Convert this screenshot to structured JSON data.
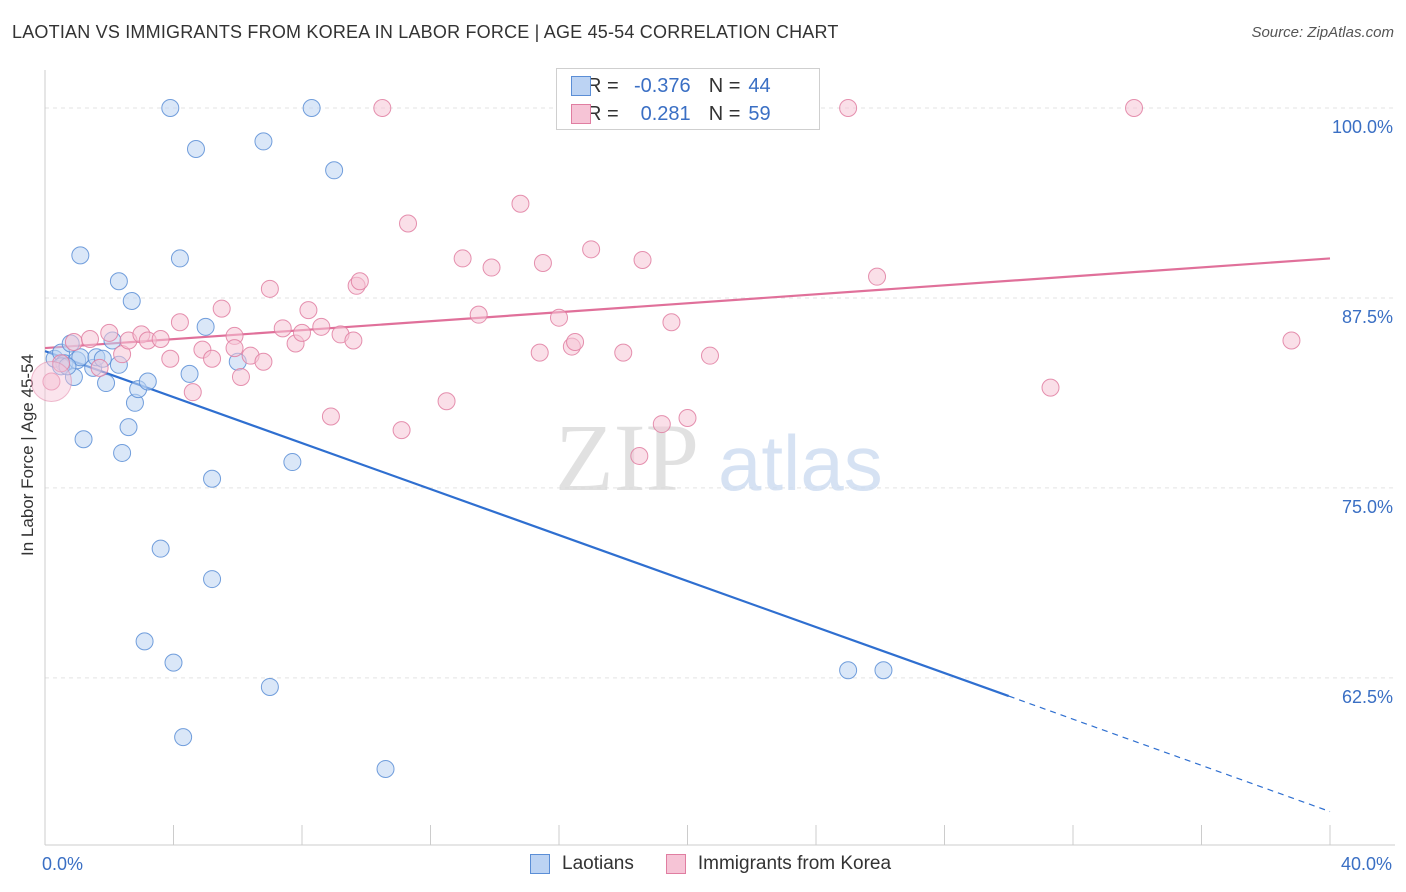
{
  "title": "LAOTIAN VS IMMIGRANTS FROM KOREA IN LABOR FORCE | AGE 45-54 CORRELATION CHART",
  "source": "Source: ZipAtlas.com",
  "watermark": {
    "zip": "ZIP",
    "atlas": "atlas"
  },
  "legend_top": {
    "r_label": "R =",
    "n_label": "N =",
    "series": [
      {
        "r": "-0.376",
        "n": "44"
      },
      {
        "r": "0.281",
        "n": "59"
      }
    ]
  },
  "chart_data": {
    "type": "scatter",
    "title": "LAOTIAN VS IMMIGRANTS FROM KOREA IN LABOR FORCE | AGE 45-54 CORRELATION CHART",
    "xlabel": "",
    "ylabel": "In Labor Force | Age 45-54",
    "xlim": [
      0,
      40
    ],
    "ylim": [
      51.5,
      102.5
    ],
    "x_tick_labels": [
      {
        "value": 0,
        "label": "0.0%"
      },
      {
        "value": 40,
        "label": "40.0%"
      }
    ],
    "y_ticks": [
      {
        "value": 100,
        "label": "100.0%"
      },
      {
        "value": 87.5,
        "label": "87.5%"
      },
      {
        "value": 75,
        "label": "75.0%"
      },
      {
        "value": 62.5,
        "label": "62.5%"
      }
    ],
    "x_minor_ticks": [
      4,
      8,
      12,
      16,
      20,
      24,
      28,
      32,
      36,
      40
    ],
    "grid": true,
    "legend_placement": "top-center",
    "series": [
      {
        "name": "Laotians",
        "color": "#5b8ed6",
        "fill": "#bcd3f3",
        "R": -0.376,
        "N": 44,
        "trend": {
          "x0": 0,
          "y0": 84.0,
          "x1": 30,
          "y1": 61.3,
          "dashed_to_x": 40,
          "dashed_to_y": 53.7
        },
        "points": [
          [
            0.3,
            83.5
          ],
          [
            0.5,
            83.9
          ],
          [
            0.6,
            83.2
          ],
          [
            0.8,
            84.5
          ],
          [
            0.9,
            82.3
          ],
          [
            1.0,
            83.4
          ],
          [
            1.1,
            83.6
          ],
          [
            1.2,
            78.2
          ],
          [
            1.5,
            82.9
          ],
          [
            1.6,
            83.6
          ],
          [
            1.8,
            83.5
          ],
          [
            1.9,
            81.9
          ],
          [
            2.1,
            84.7
          ],
          [
            2.3,
            83.1
          ],
          [
            2.6,
            79.0
          ],
          [
            2.7,
            87.3
          ],
          [
            2.8,
            80.6
          ],
          [
            2.9,
            81.5
          ],
          [
            3.2,
            82.0
          ],
          [
            3.6,
            71.0
          ],
          [
            3.9,
            100.0
          ],
          [
            4.0,
            63.5
          ],
          [
            4.2,
            90.1
          ],
          [
            4.3,
            58.6
          ],
          [
            4.5,
            82.5
          ],
          [
            4.7,
            97.3
          ],
          [
            5.0,
            85.6
          ],
          [
            5.2,
            75.6
          ],
          [
            1.1,
            90.3
          ],
          [
            2.3,
            88.6
          ],
          [
            3.1,
            64.9
          ],
          [
            5.2,
            69.0
          ],
          [
            6.0,
            83.3
          ],
          [
            6.8,
            97.8
          ],
          [
            7.0,
            61.9
          ],
          [
            7.7,
            76.7
          ],
          [
            8.3,
            100.0
          ],
          [
            9.0,
            95.9
          ],
          [
            10.6,
            56.5
          ],
          [
            2.4,
            77.3
          ],
          [
            0.5,
            83.0
          ],
          [
            25.0,
            63.0
          ],
          [
            26.1,
            63.0
          ],
          [
            0.7,
            83.0
          ]
        ]
      },
      {
        "name": "Immigrants from Korea",
        "color": "#e07ea1",
        "fill": "#f6c4d6",
        "R": 0.281,
        "N": 59,
        "trend": {
          "x0": 0,
          "y0": 84.2,
          "x1": 40,
          "y1": 90.1
        },
        "points": [
          [
            0.2,
            82.0
          ],
          [
            0.5,
            83.2
          ],
          [
            0.9,
            84.6
          ],
          [
            1.4,
            84.8
          ],
          [
            1.7,
            82.9
          ],
          [
            2.0,
            85.2
          ],
          [
            2.4,
            83.8
          ],
          [
            2.6,
            84.7
          ],
          [
            3.0,
            85.1
          ],
          [
            3.2,
            84.7
          ],
          [
            3.6,
            84.8
          ],
          [
            3.9,
            83.5
          ],
          [
            4.2,
            85.9
          ],
          [
            4.6,
            81.3
          ],
          [
            4.9,
            84.1
          ],
          [
            5.2,
            83.5
          ],
          [
            5.5,
            86.8
          ],
          [
            5.9,
            85.0
          ],
          [
            6.1,
            82.3
          ],
          [
            6.4,
            83.7
          ],
          [
            6.8,
            83.3
          ],
          [
            7.0,
            88.1
          ],
          [
            7.4,
            85.5
          ],
          [
            7.8,
            84.5
          ],
          [
            8.0,
            85.2
          ],
          [
            8.2,
            86.7
          ],
          [
            8.6,
            85.6
          ],
          [
            8.9,
            79.7
          ],
          [
            9.2,
            85.1
          ],
          [
            9.6,
            84.7
          ],
          [
            9.7,
            88.3
          ],
          [
            9.8,
            88.6
          ],
          [
            10.5,
            100.0
          ],
          [
            11.1,
            78.8
          ],
          [
            11.3,
            92.4
          ],
          [
            12.5,
            80.7
          ],
          [
            13.0,
            90.1
          ],
          [
            13.5,
            86.4
          ],
          [
            13.9,
            89.5
          ],
          [
            14.8,
            93.7
          ],
          [
            15.4,
            83.9
          ],
          [
            15.5,
            89.8
          ],
          [
            16.0,
            86.2
          ],
          [
            16.4,
            84.3
          ],
          [
            16.5,
            84.6
          ],
          [
            17.0,
            90.7
          ],
          [
            18.0,
            83.9
          ],
          [
            18.5,
            77.1
          ],
          [
            18.6,
            90.0
          ],
          [
            19.2,
            79.2
          ],
          [
            19.5,
            85.9
          ],
          [
            20.0,
            79.6
          ],
          [
            20.7,
            83.7
          ],
          [
            25.0,
            100.0
          ],
          [
            25.9,
            88.9
          ],
          [
            31.3,
            81.6
          ],
          [
            33.9,
            100.0
          ],
          [
            38.8,
            84.7
          ],
          [
            5.9,
            84.2
          ]
        ]
      }
    ]
  }
}
